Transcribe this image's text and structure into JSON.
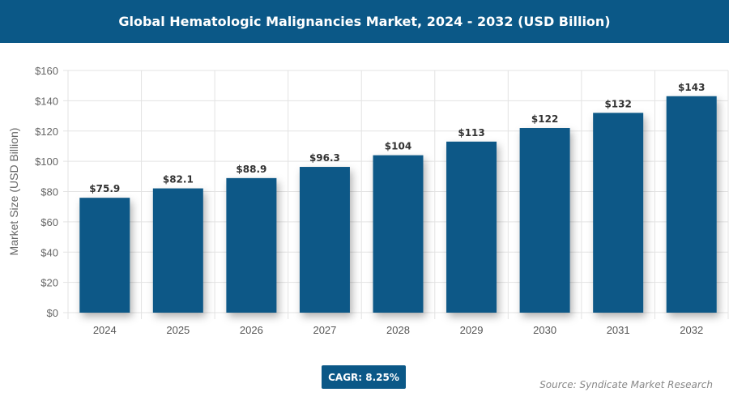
{
  "chart_data": {
    "type": "bar",
    "title": "Global Hematologic Malignancies Market, 2024 - 2032 (USD Billion)",
    "xlabel": "",
    "ylabel": "Market Size (USD Billion)",
    "categories": [
      "2024",
      "2025",
      "2026",
      "2027",
      "2028",
      "2029",
      "2030",
      "2031",
      "2032"
    ],
    "values": [
      75.9,
      82.1,
      88.9,
      96.3,
      104,
      113,
      122,
      132,
      143
    ],
    "data_labels": [
      "$75.9",
      "$82.1",
      "$88.9",
      "$96.3",
      "$104",
      "$113",
      "$122",
      "$132",
      "$143"
    ],
    "ylim": [
      0,
      160
    ],
    "yticks": [
      "$0",
      "$20",
      "$40",
      "$60",
      "$80",
      "$100",
      "$120",
      "$140",
      "$160"
    ],
    "grid": true,
    "bar_color": "#0b5887"
  },
  "cagr": "CAGR: 8.25%",
  "source": "Source: Syndicate Market Research"
}
